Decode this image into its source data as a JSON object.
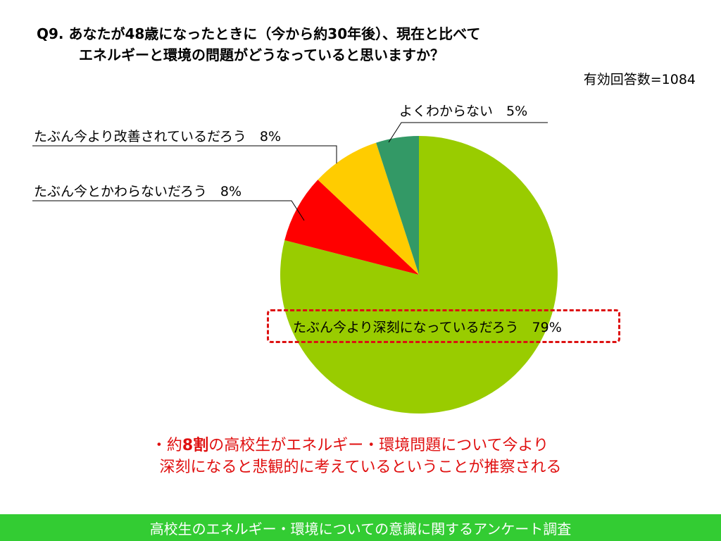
{
  "question": {
    "line1": "Q9. あなたが48歳になったときに（今から約30年後）、現在と比べて",
    "line2": "エネルギーと環境の問題がどうなっていると思いますか？"
  },
  "sample_size": "有効回答数=1084",
  "conclusion": {
    "line1_prefix": "・約",
    "line1_emph": "8割",
    "line1_suffix": "の高校生がエネルギー・環境問題について今より",
    "line2": "深刻になると悲観的に考えているということが推察される"
  },
  "footer": "高校生のエネルギー・環境についての意識に関するアンケート調査",
  "chart_data": {
    "type": "pie",
    "title": "",
    "slices": [
      {
        "label": "たぶん今より深刻になっているだろう",
        "value": 79,
        "display": "たぶん今より深刻になっているだろう　79%",
        "color": "#99cc00"
      },
      {
        "label": "たぶん今とかわらないだろう",
        "value": 8,
        "display": "たぶん今とかわらないだろう　8%",
        "color": "#ff0000"
      },
      {
        "label": "たぶん今より改善されているだろう",
        "value": 8,
        "display": "たぶん今より改善されているだろう　8%",
        "color": "#ffcc00"
      },
      {
        "label": "よくわからない",
        "value": 5,
        "display": "よくわからない　5%",
        "color": "#339966"
      }
    ]
  }
}
